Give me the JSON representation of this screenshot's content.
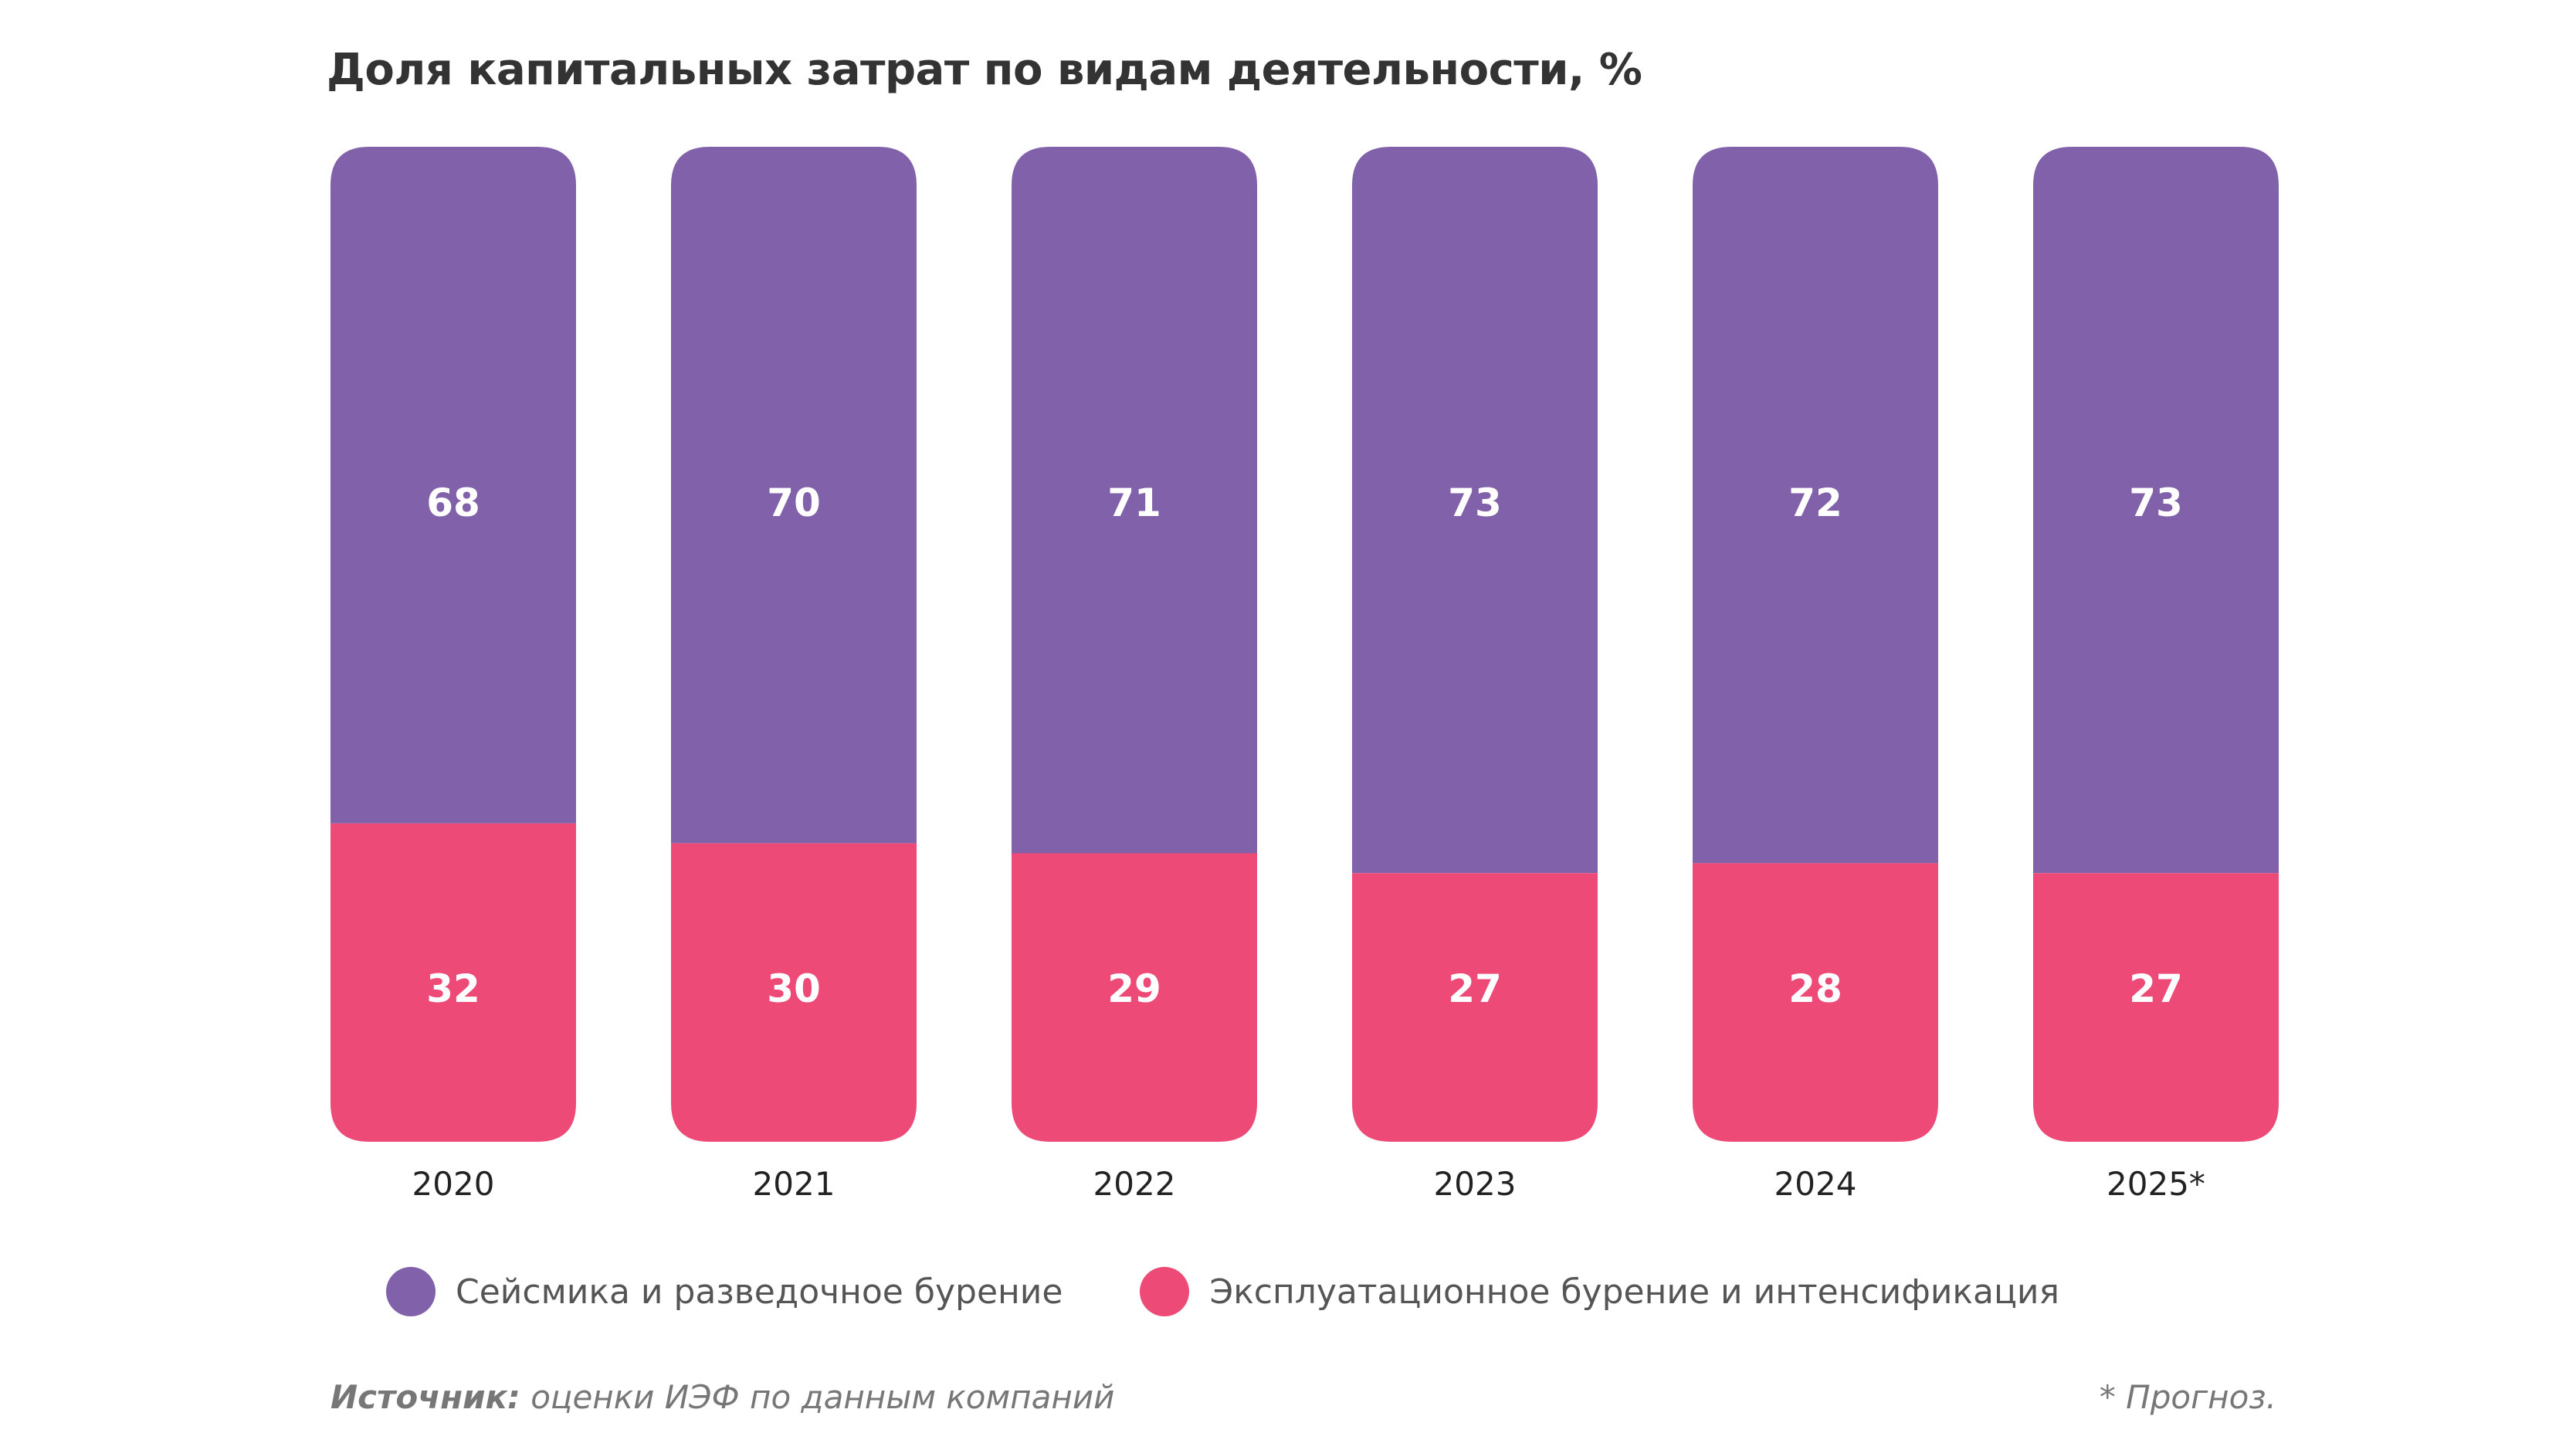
{
  "title": "Доля капитальных затрат по видам деятельности, %",
  "chart_data": {
    "type": "bar",
    "stacked": true,
    "title": "Доля капитальных затрат по видам деятельности, %",
    "categories": [
      "2020",
      "2021",
      "2022",
      "2023",
      "2024",
      "2025*"
    ],
    "series": [
      {
        "name": "Сейсмика и разведочное бурение",
        "color": "#8162AA",
        "values": [
          68,
          70,
          71,
          73,
          72,
          73
        ]
      },
      {
        "name": "Эксплуатационное бурение и интенсификация",
        "color": "#EE4A77",
        "values": [
          32,
          30,
          29,
          27,
          28,
          27
        ]
      }
    ],
    "ylim": [
      0,
      100
    ],
    "grid": false,
    "legend_position": "bottom"
  },
  "legend": [
    {
      "label": "Сейсмика и разведочное бурение",
      "color": "#8162AA"
    },
    {
      "label": "Эксплуатационное бурение и интенсификация",
      "color": "#EE4A77"
    }
  ],
  "source": {
    "label": "Источник:",
    "text": "оценки ИЭФ по данным компаний"
  },
  "note": "* Прогноз."
}
